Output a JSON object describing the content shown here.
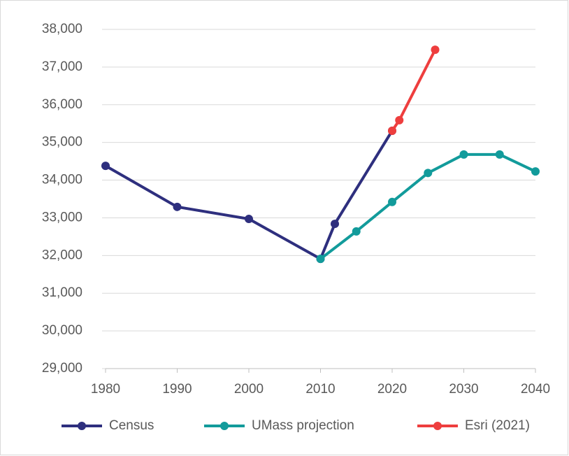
{
  "chart_data": {
    "type": "line",
    "xlim": [
      1980,
      2040
    ],
    "xticks": [
      1980,
      1990,
      2000,
      2010,
      2020,
      2030,
      2040
    ],
    "ylim": [
      29000,
      38000
    ],
    "yticks": [
      {
        "value": 29000,
        "label": "29,000"
      },
      {
        "value": 30000,
        "label": "30,000"
      },
      {
        "value": 31000,
        "label": "31,000"
      },
      {
        "value": 32000,
        "label": "32,000"
      },
      {
        "value": 33000,
        "label": "33,000"
      },
      {
        "value": 34000,
        "label": "34,000"
      },
      {
        "value": 35000,
        "label": "35,000"
      },
      {
        "value": 36000,
        "label": "36,000"
      },
      {
        "value": 37000,
        "label": "37,000"
      },
      {
        "value": 38000,
        "label": "38,000"
      }
    ],
    "grid": true,
    "legend": "bottom",
    "series": [
      {
        "name": "Census",
        "color": "#2e2f7e",
        "x": [
          1980,
          1990,
          2000,
          2010,
          2012,
          2020
        ],
        "values": [
          34380,
          33290,
          32970,
          31910,
          32840,
          35310
        ]
      },
      {
        "name": "UMass projection",
        "color": "#129b9b",
        "x": [
          2010,
          2015,
          2020,
          2025,
          2030,
          2035,
          2040
        ],
        "values": [
          31910,
          32640,
          33420,
          34190,
          34680,
          34680,
          34230
        ]
      },
      {
        "name": "Esri (2021)",
        "color": "#ee3e3e",
        "x": [
          2020,
          2021,
          2026
        ],
        "values": [
          35310,
          35590,
          37460
        ]
      }
    ]
  }
}
